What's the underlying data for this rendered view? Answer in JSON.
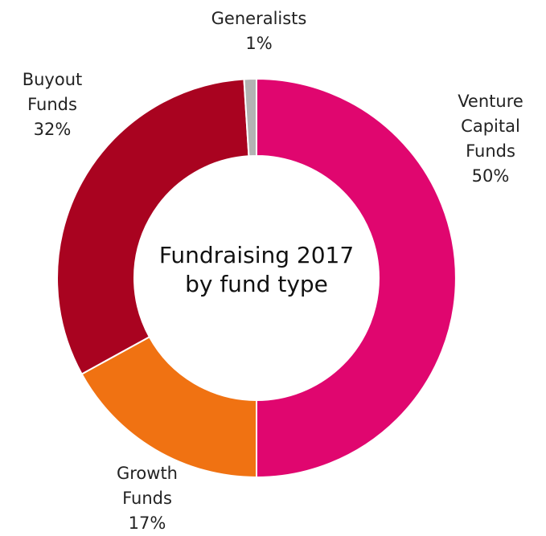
{
  "chart_data": {
    "type": "donut",
    "title": "Fundraising 2017 by fund type",
    "categories": [
      "Venture Capital Funds",
      "Growth Funds",
      "Buyout Funds",
      "Generalists"
    ],
    "values": [
      50,
      17,
      32,
      1
    ],
    "value_labels": [
      "50%",
      "17%",
      "32%",
      "1%"
    ],
    "colors": [
      "#e0066f",
      "#f07212",
      "#a90320",
      "#b3b3b3"
    ]
  }
}
